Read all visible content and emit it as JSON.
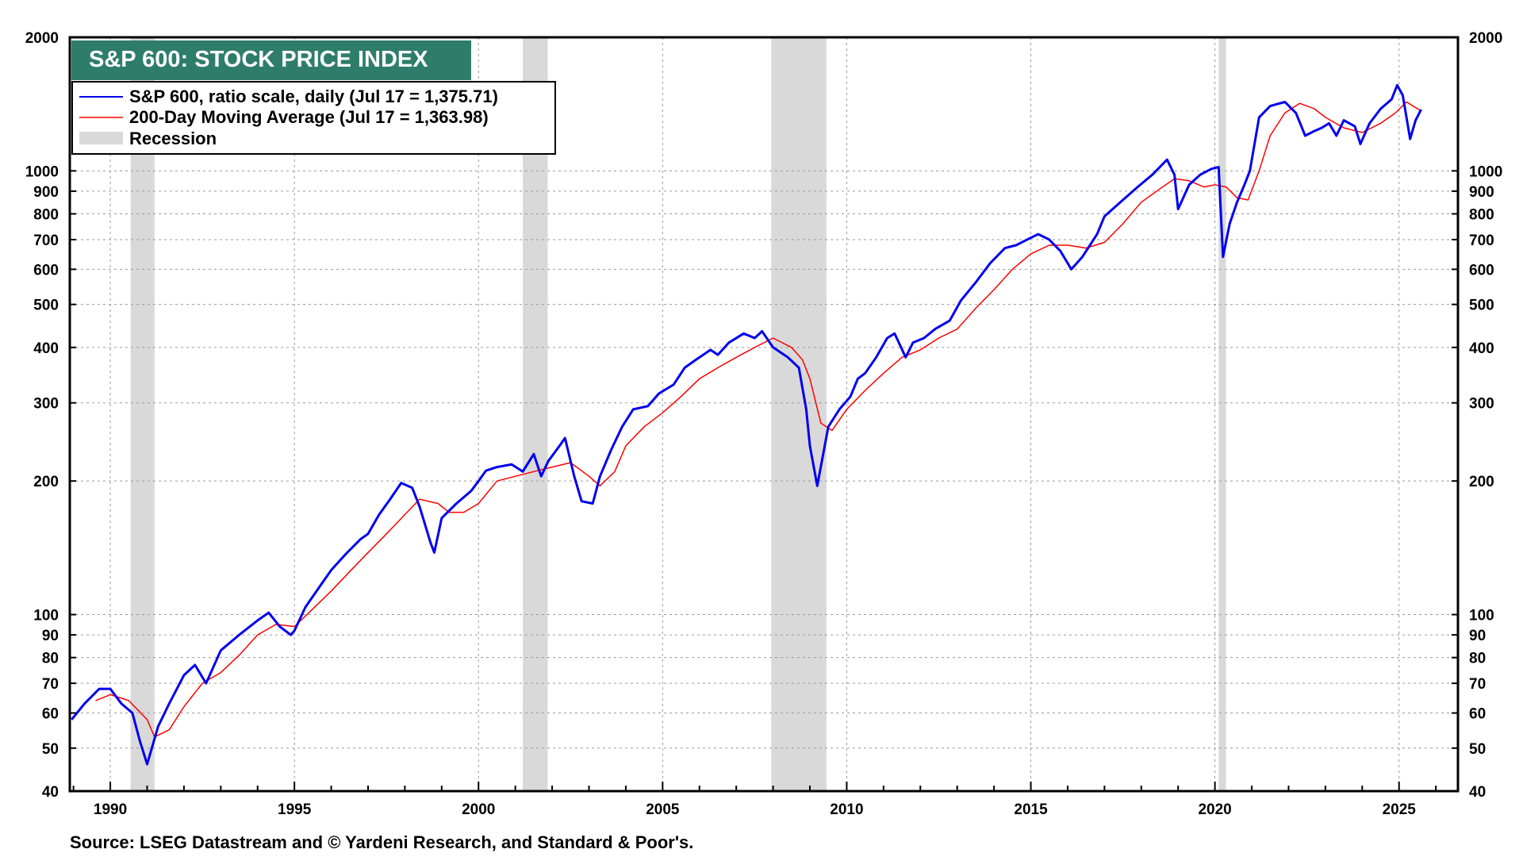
{
  "chart_data": {
    "type": "line",
    "title": "S&P 600: STOCK PRICE INDEX",
    "title_bg_color": "#2e7d6b",
    "y_scale": "log",
    "ylim": [
      40,
      2000
    ],
    "xlim": [
      1988.9,
      2026.6
    ],
    "y_ticks": [
      40,
      50,
      60,
      70,
      80,
      90,
      100,
      200,
      300,
      400,
      500,
      600,
      700,
      800,
      900,
      1000,
      2000
    ],
    "x_ticks": [
      1990,
      1995,
      2000,
      2005,
      2010,
      2015,
      2020,
      2025
    ],
    "grid": true,
    "legend_placement": "top-left",
    "legend": {
      "series1": "S&P 600, ratio scale, daily (Jul 17 = 1,375.71)",
      "series2": "200-Day Moving Average (Jul 17 = 1,363.98)",
      "recession": "Recession"
    },
    "recessions": [
      [
        1990.55,
        1991.2
      ],
      [
        2001.2,
        2001.88
      ],
      [
        2007.95,
        2009.45
      ],
      [
        2020.1,
        2020.3
      ]
    ],
    "series": [
      {
        "name": "S&P 600, ratio scale, daily (Jul 17 = 1,375.71)",
        "color": "#0000ee",
        "x": [
          1988.95,
          1989.3,
          1989.7,
          1990.0,
          1990.3,
          1990.6,
          1990.8,
          1991.0,
          1991.3,
          1991.6,
          1992.0,
          1992.3,
          1992.6,
          1993.0,
          1993.5,
          1994.0,
          1994.3,
          1994.6,
          1994.9,
          1995.0,
          1995.3,
          1995.7,
          1996.0,
          1996.4,
          1996.8,
          1997.0,
          1997.3,
          1997.6,
          1997.9,
          1998.2,
          1998.4,
          1998.7,
          1998.8,
          1999.0,
          1999.4,
          1999.8,
          2000.0,
          2000.2,
          2000.5,
          2000.9,
          2001.2,
          2001.5,
          2001.7,
          2001.9,
          2002.2,
          2002.35,
          2002.6,
          2002.8,
          2003.1,
          2003.3,
          2003.6,
          2003.9,
          2004.2,
          2004.6,
          2004.9,
          2005.3,
          2005.6,
          2005.9,
          2006.3,
          2006.5,
          2006.8,
          2007.2,
          2007.5,
          2007.7,
          2008.0,
          2008.4,
          2008.7,
          2008.9,
          2009.0,
          2009.2,
          2009.5,
          2009.8,
          2010.1,
          2010.3,
          2010.5,
          2010.8,
          2011.1,
          2011.3,
          2011.6,
          2011.8,
          2012.1,
          2012.4,
          2012.8,
          2013.1,
          2013.5,
          2013.9,
          2014.3,
          2014.6,
          2014.9,
          2015.2,
          2015.5,
          2015.8,
          2016.1,
          2016.4,
          2016.8,
          2017.0,
          2017.5,
          2017.9,
          2018.3,
          2018.7,
          2018.9,
          2019.0,
          2019.3,
          2019.6,
          2019.9,
          2020.1,
          2020.22,
          2020.4,
          2020.6,
          2020.8,
          2020.95,
          2021.2,
          2021.5,
          2021.9,
          2022.2,
          2022.45,
          2022.7,
          2022.9,
          2023.1,
          2023.3,
          2023.5,
          2023.8,
          2023.95,
          2024.2,
          2024.5,
          2024.8,
          2024.95,
          2025.1,
          2025.3,
          2025.45,
          2025.6
        ],
        "values": [
          58,
          63,
          68,
          68,
          63,
          60,
          52,
          46,
          56,
          63,
          73,
          77,
          70,
          83,
          90,
          97,
          101,
          94,
          90,
          92,
          104,
          116,
          126,
          137,
          148,
          152,
          168,
          182,
          198,
          193,
          175,
          145,
          138,
          165,
          178,
          190,
          200,
          211,
          215,
          218,
          210,
          230,
          205,
          222,
          240,
          250,
          205,
          180,
          178,
          205,
          235,
          265,
          290,
          295,
          315,
          330,
          360,
          375,
          395,
          385,
          410,
          430,
          420,
          435,
          400,
          380,
          360,
          290,
          240,
          195,
          265,
          290,
          310,
          340,
          350,
          380,
          420,
          430,
          380,
          410,
          420,
          440,
          460,
          510,
          560,
          620,
          670,
          680,
          700,
          720,
          700,
          660,
          600,
          640,
          720,
          790,
          860,
          920,
          980,
          1060,
          980,
          820,
          930,
          980,
          1010,
          1020,
          640,
          760,
          850,
          930,
          1000,
          1320,
          1400,
          1430,
          1350,
          1200,
          1230,
          1250,
          1280,
          1200,
          1300,
          1260,
          1150,
          1280,
          1380,
          1450,
          1560,
          1480,
          1180,
          1300,
          1375.71
        ]
      },
      {
        "name": "200-Day Moving Average (Jul 17 = 1,363.98)",
        "color": "#ff0000",
        "x": [
          1989.6,
          1990.0,
          1990.5,
          1991.0,
          1991.2,
          1991.6,
          1992.0,
          1992.5,
          1993.0,
          1993.5,
          1994.0,
          1994.5,
          1995.0,
          1995.5,
          1996.0,
          1996.5,
          1997.0,
          1997.5,
          1998.0,
          1998.4,
          1998.9,
          1999.2,
          1999.6,
          2000.0,
          2000.5,
          2001.0,
          2001.5,
          2002.0,
          2002.5,
          2003.0,
          2003.3,
          2003.7,
          2004.0,
          2004.5,
          2005.0,
          2005.5,
          2006.0,
          2006.5,
          2007.0,
          2007.5,
          2008.0,
          2008.5,
          2008.8,
          2009.0,
          2009.3,
          2009.6,
          2010.0,
          2010.5,
          2011.0,
          2011.5,
          2012.0,
          2012.5,
          2013.0,
          2013.5,
          2014.0,
          2014.5,
          2015.0,
          2015.5,
          2016.0,
          2016.5,
          2017.0,
          2017.5,
          2018.0,
          2018.5,
          2018.9,
          2019.3,
          2019.7,
          2020.0,
          2020.3,
          2020.6,
          2020.9,
          2021.2,
          2021.5,
          2021.9,
          2022.3,
          2022.7,
          2023.0,
          2023.5,
          2024.0,
          2024.5,
          2024.9,
          2025.2,
          2025.6
        ],
        "values": [
          64,
          66,
          64,
          58,
          53,
          55,
          62,
          70,
          74,
          81,
          90,
          95,
          94,
          103,
          113,
          125,
          138,
          152,
          168,
          182,
          178,
          170,
          170,
          178,
          200,
          205,
          210,
          215,
          220,
          205,
          195,
          210,
          240,
          265,
          285,
          310,
          340,
          360,
          380,
          400,
          420,
          400,
          375,
          340,
          270,
          260,
          290,
          320,
          350,
          380,
          395,
          420,
          440,
          490,
          540,
          600,
          650,
          680,
          680,
          670,
          690,
          760,
          850,
          910,
          960,
          950,
          920,
          930,
          920,
          870,
          860,
          1000,
          1200,
          1350,
          1420,
          1380,
          1320,
          1250,
          1220,
          1280,
          1350,
          1430,
          1363.98
        ]
      }
    ],
    "source": "Source: LSEG Datastream and © Yardeni Research, and Standard & Poor's."
  }
}
